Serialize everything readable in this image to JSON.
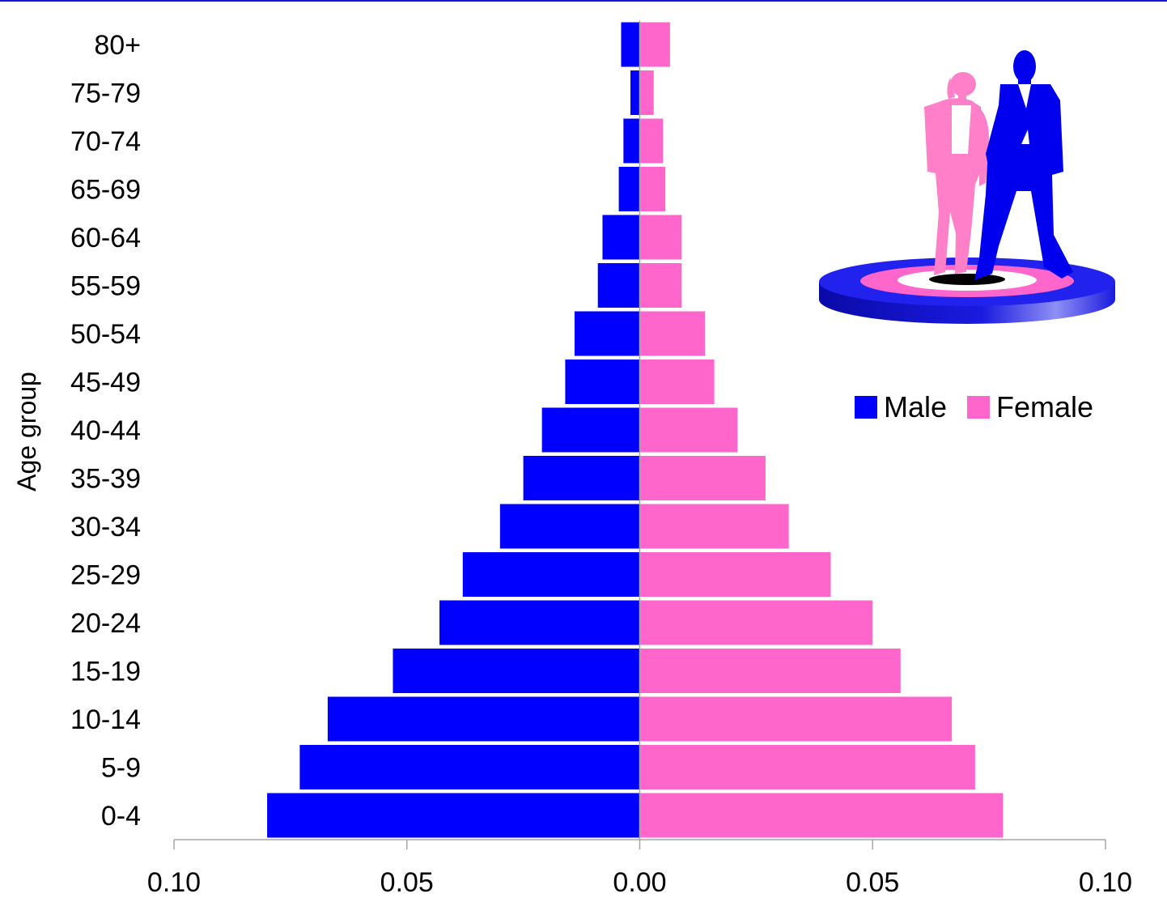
{
  "chart_data": {
    "type": "bar",
    "orientation": "horizontal",
    "title": "",
    "ylabel": "Age group",
    "xlabel": "",
    "categories": [
      "0-4",
      "5-9",
      "10-14",
      "15-19",
      "20-24",
      "25-29",
      "30-34",
      "35-39",
      "40-44",
      "45-49",
      "50-54",
      "55-59",
      "60-64",
      "65-69",
      "70-74",
      "75-79",
      "80+"
    ],
    "series": [
      {
        "name": "Male",
        "color": "#0000ff",
        "values": [
          0.08,
          0.073,
          0.067,
          0.053,
          0.043,
          0.038,
          0.03,
          0.025,
          0.021,
          0.016,
          0.014,
          0.009,
          0.008,
          0.0045,
          0.0035,
          0.002,
          0.004
        ]
      },
      {
        "name": "Female",
        "color": "#ff66cc",
        "values": [
          0.078,
          0.072,
          0.067,
          0.056,
          0.05,
          0.041,
          0.032,
          0.027,
          0.021,
          0.016,
          0.014,
          0.009,
          0.009,
          0.0055,
          0.005,
          0.003,
          0.0065
        ]
      }
    ],
    "xlim": [
      -0.1,
      0.1
    ],
    "xticks": [
      -0.1,
      -0.05,
      0.0,
      0.05,
      0.1
    ],
    "xtick_labels": [
      "0.10",
      "0.05",
      "0.00",
      "0.05",
      "0.10"
    ],
    "grid": false,
    "legend_position": "right"
  },
  "illustration": {
    "icon": "couple-on-podium-icon",
    "colors": {
      "woman": "#ff80c8",
      "man": "#0000ee",
      "podium": "#1010d0"
    }
  }
}
